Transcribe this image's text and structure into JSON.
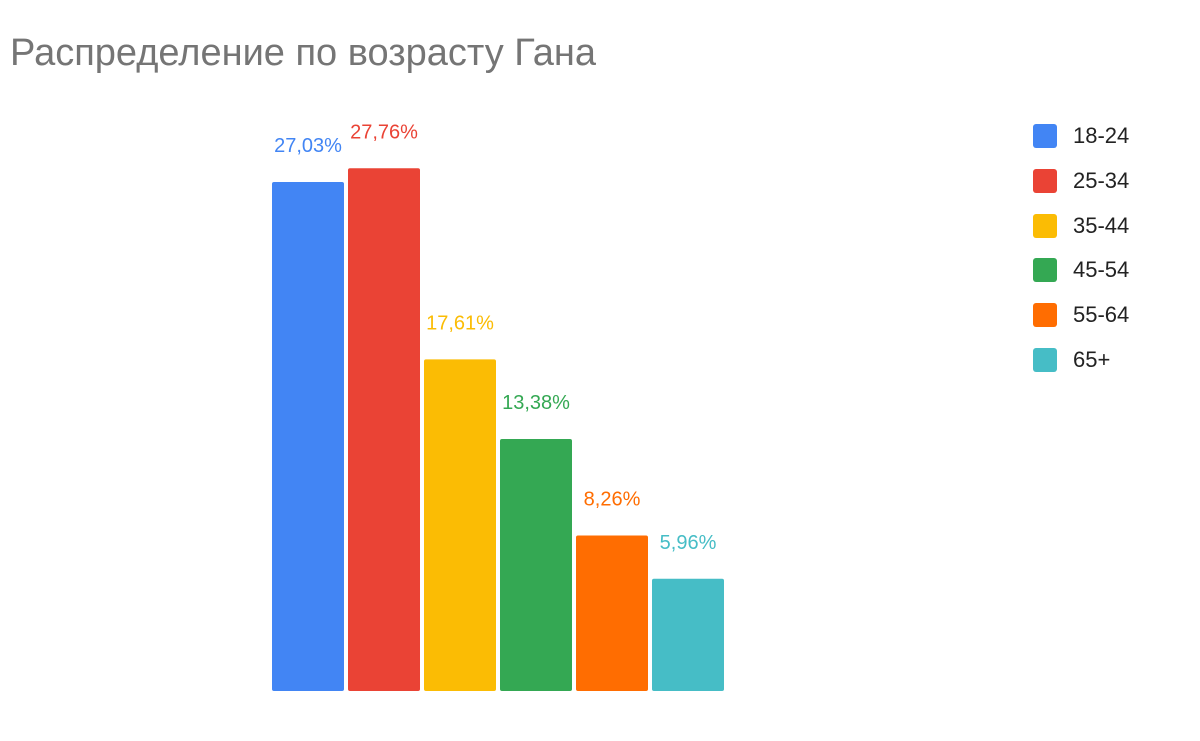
{
  "chart_data": {
    "type": "bar",
    "title": "Распределение по возрасту Гана",
    "categories": [
      "18-24",
      "25-34",
      "35-44",
      "45-54",
      "55-64",
      "65+"
    ],
    "values": [
      27.03,
      27.76,
      17.61,
      13.38,
      8.26,
      5.96
    ],
    "data_labels": [
      "27,03%",
      "27,76%",
      "17,61%",
      "13,38%",
      "8,26%",
      "5,96%"
    ],
    "colors": [
      "#4285F4",
      "#EA4335",
      "#FBBC04",
      "#34A853",
      "#FF6D01",
      "#46BDC6"
    ],
    "legend_position": "right",
    "grid": false,
    "ylim": [
      0,
      30
    ]
  }
}
